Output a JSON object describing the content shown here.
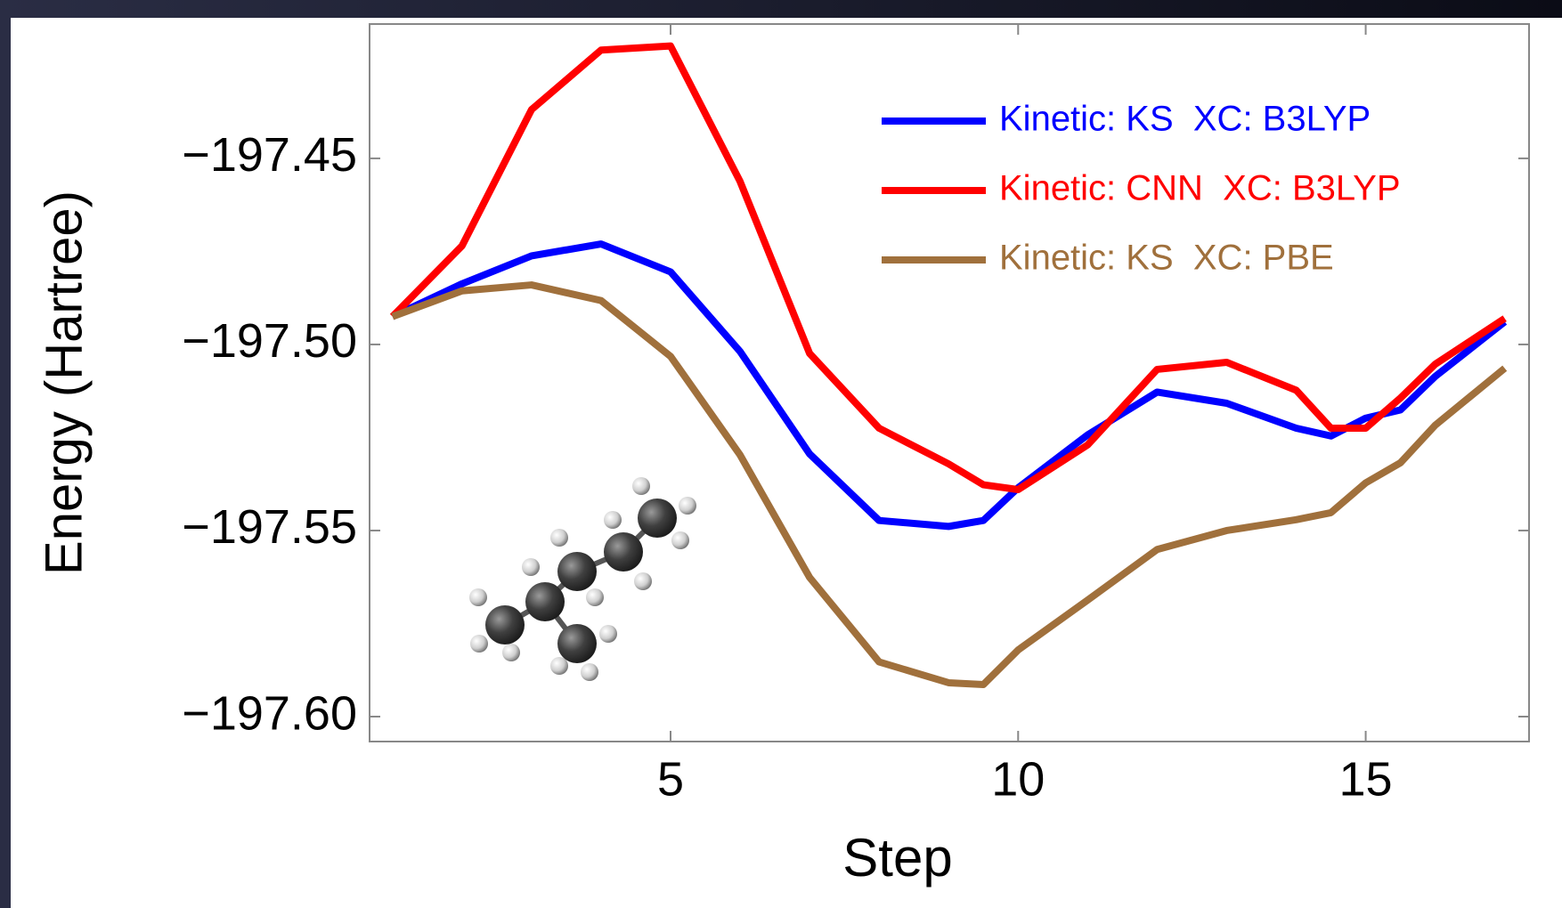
{
  "chart_data": {
    "type": "line",
    "x_label": "Step",
    "y_label": "Energy (Hartree)",
    "x": [
      1,
      2,
      3,
      4,
      5,
      6,
      7,
      8,
      9,
      9.5,
      10,
      11,
      12,
      13,
      14,
      14.5,
      15,
      15.5,
      16,
      17
    ],
    "series": [
      {
        "name": "Kinetic: KS  XC: B3LYP",
        "color": "#0000ff",
        "values": [
          -197.4925,
          -197.4837,
          -197.4762,
          -197.473,
          -197.4805,
          -197.5019,
          -197.5294,
          -197.5473,
          -197.5489,
          -197.5473,
          -197.5385,
          -197.5243,
          -197.5128,
          -197.5158,
          -197.5225,
          -197.5246,
          -197.5198,
          -197.5176,
          -197.5086,
          -197.4939
        ]
      },
      {
        "name": "Kinetic: CNN  XC: B3LYP",
        "color": "#ff0000",
        "values": [
          -197.4925,
          -197.4735,
          -197.4369,
          -197.4209,
          -197.4198,
          -197.4562,
          -197.5024,
          -197.5225,
          -197.5321,
          -197.5377,
          -197.539,
          -197.527,
          -197.5067,
          -197.5048,
          -197.5123,
          -197.5225,
          -197.5225,
          -197.5144,
          -197.5053,
          -197.493
        ]
      },
      {
        "name": "Kinetic: KS  XC: PBE",
        "color": "#a0703c",
        "values": [
          -197.4925,
          -197.4856,
          -197.484,
          -197.4882,
          -197.5032,
          -197.5297,
          -197.5626,
          -197.5853,
          -197.5909,
          -197.5914,
          -197.5821,
          -197.5687,
          -197.5551,
          -197.55,
          -197.5471,
          -197.5452,
          -197.5372,
          -197.5318,
          -197.5217,
          -197.5064
        ]
      }
    ],
    "xlim": [
      0.67,
      17.35
    ],
    "ylim": [
      -197.6067,
      -197.4139
    ],
    "xticks": [
      5,
      10,
      15
    ],
    "yticks": [
      {
        "value": -197.6,
        "label": "−197.60"
      },
      {
        "value": -197.55,
        "label": "−197.55"
      },
      {
        "value": -197.5,
        "label": "−197.50"
      },
      {
        "value": -197.45,
        "label": "−197.45"
      }
    ],
    "grid": false,
    "legend": "upper right"
  }
}
